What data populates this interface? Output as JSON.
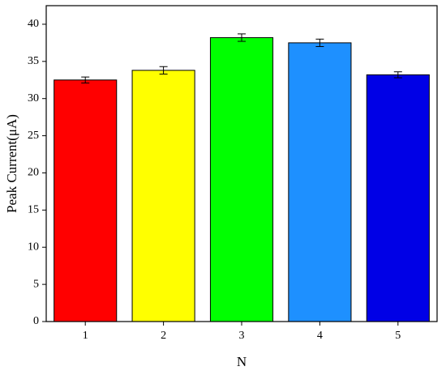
{
  "chart_data": {
    "type": "bar",
    "x_label": "N",
    "y_label": "Peak Current(μA)",
    "categories": [
      "1",
      "2",
      "3",
      "4",
      "5"
    ],
    "values": [
      32.5,
      33.8,
      38.2,
      37.5,
      33.2
    ],
    "errors": [
      0.4,
      0.5,
      0.5,
      0.5,
      0.4
    ],
    "colors": [
      "#ff0000",
      "#ffff00",
      "#00ff00",
      "#1e90ff",
      "#0000e6"
    ],
    "ylim": [
      0,
      42.5
    ],
    "yticks": [
      0,
      5,
      10,
      15,
      20,
      25,
      30,
      35,
      40
    ],
    "grid": false
  }
}
